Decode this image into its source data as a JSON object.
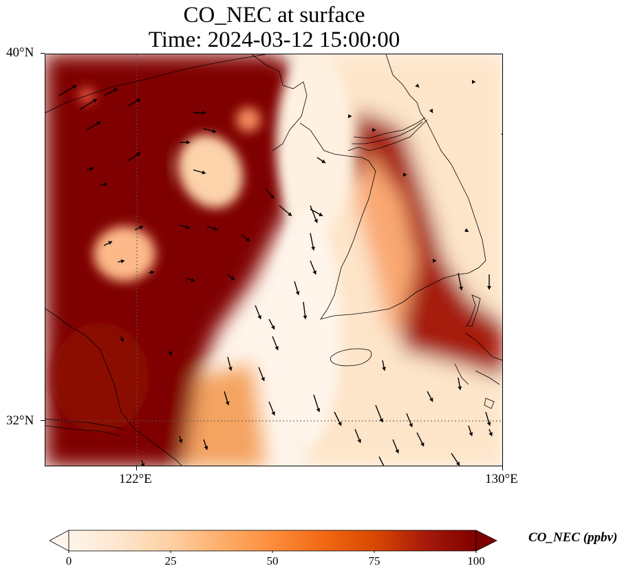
{
  "title_line1": "CO_NEC at surface",
  "title_line2": "Time: 2024-03-12 15:00:00",
  "map": {
    "lat_labels": [
      "40°N",
      "32°N"
    ],
    "lon_labels": [
      "122°E",
      "130°E"
    ],
    "extent": {
      "lon_min": 120,
      "lon_max": 130,
      "lat_min": 31,
      "lat_max": 40
    }
  },
  "colorbar": {
    "title": "CO_NEC (ppbv)",
    "ticks": [
      "0",
      "25",
      "50",
      "75",
      "100"
    ],
    "vmin": 0,
    "vmax": 100,
    "colormap": [
      "#fff5eb",
      "#fee6ce",
      "#fdd0a2",
      "#fdae6b",
      "#fd8d3c",
      "#f16913",
      "#d94801",
      "#a63603",
      "#7f0000"
    ],
    "extend": "both"
  },
  "colors": {
    "low": "#fff5eb",
    "high": "#7f0000",
    "wind_arrow": "#000000",
    "coastline": "#000000"
  }
}
